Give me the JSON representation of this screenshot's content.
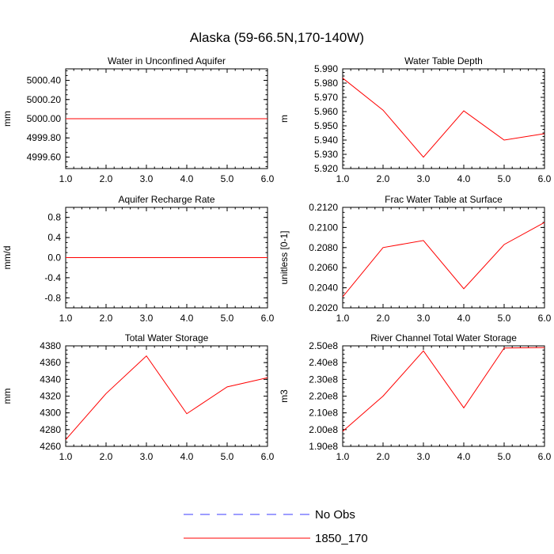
{
  "figure": {
    "title": "Alaska (59-66.5N,170-140W)"
  },
  "legend": {
    "entries": [
      {
        "label": "No Obs",
        "color": "#3b3bff",
        "dash": true
      },
      {
        "label": "1850_170",
        "color": "#ff0000",
        "dash": false
      }
    ]
  },
  "chart_data": [
    {
      "type": "line",
      "title": "Water in Unconfined Aquifer",
      "ylabel": "mm",
      "x": [
        1,
        2,
        3,
        4,
        5,
        6
      ],
      "xlim": [
        1,
        6
      ],
      "xticks": [
        "1.0",
        "2.0",
        "3.0",
        "4.0",
        "5.0",
        "6.0"
      ],
      "ylim": [
        4999.48,
        5000.52
      ],
      "yticks": [
        4999.6,
        4999.8,
        5000.0,
        5000.2,
        5000.4
      ],
      "yticklabels": [
        "4999.60",
        "4999.80",
        "5000.00",
        "5000.20",
        "5000.40"
      ],
      "series": [
        {
          "name": "1850_170",
          "color": "#ff0000",
          "values": [
            5000,
            5000,
            5000,
            5000,
            5000,
            5000
          ]
        }
      ]
    },
    {
      "type": "line",
      "title": "Water Table Depth",
      "ylabel": "m",
      "x": [
        1,
        2,
        3,
        4,
        5,
        6
      ],
      "xlim": [
        1,
        6
      ],
      "xticks": [
        "1.0",
        "2.0",
        "3.0",
        "4.0",
        "5.0",
        "6.0"
      ],
      "ylim": [
        5.92,
        5.99
      ],
      "yticks": [
        5.92,
        5.93,
        5.94,
        5.95,
        5.96,
        5.97,
        5.98,
        5.99
      ],
      "yticklabels": [
        "5.920",
        "5.930",
        "5.940",
        "5.950",
        "5.960",
        "5.970",
        "5.980",
        "5.990"
      ],
      "series": [
        {
          "name": "1850_170",
          "color": "#ff0000",
          "values": [
            5.9835,
            5.961,
            5.928,
            5.9605,
            5.94,
            5.9445
          ]
        }
      ]
    },
    {
      "type": "line",
      "title": "Aquifer Recharge Rate",
      "ylabel": "mm/d",
      "x": [
        1,
        2,
        3,
        4,
        5,
        6
      ],
      "xlim": [
        1,
        6
      ],
      "xticks": [
        "1.0",
        "2.0",
        "3.0",
        "4.0",
        "5.0",
        "6.0"
      ],
      "ylim": [
        -1.0,
        1.0
      ],
      "yticks": [
        -0.8,
        -0.4,
        0.0,
        0.4,
        0.8
      ],
      "yticklabels": [
        "-0.8",
        "-0.4",
        "0.0",
        "0.4",
        "0.8"
      ],
      "series": [
        {
          "name": "1850_170",
          "color": "#ff0000",
          "values": [
            0,
            0,
            0,
            0,
            0,
            0
          ]
        }
      ]
    },
    {
      "type": "line",
      "title": "Frac Water Table at Surface",
      "ylabel": "unitless [0-1]",
      "x": [
        1,
        2,
        3,
        4,
        5,
        6
      ],
      "xlim": [
        1,
        6
      ],
      "xticks": [
        "1.0",
        "2.0",
        "3.0",
        "4.0",
        "5.0",
        "6.0"
      ],
      "ylim": [
        0.202,
        0.212
      ],
      "yticks": [
        0.202,
        0.204,
        0.206,
        0.208,
        0.21,
        0.212
      ],
      "yticklabels": [
        "0.2020",
        "0.2040",
        "0.2060",
        "0.2080",
        "0.2100",
        "0.2120"
      ],
      "series": [
        {
          "name": "1850_170",
          "color": "#ff0000",
          "values": [
            0.2031,
            0.208,
            0.2087,
            0.2039,
            0.2083,
            0.2105
          ]
        }
      ]
    },
    {
      "type": "line",
      "title": "Total Water Storage",
      "ylabel": "mm",
      "x": [
        1,
        2,
        3,
        4,
        5,
        6
      ],
      "xlim": [
        1,
        6
      ],
      "xticks": [
        "1.0",
        "2.0",
        "3.0",
        "4.0",
        "5.0",
        "6.0"
      ],
      "ylim": [
        4260,
        4380
      ],
      "yticks": [
        4260,
        4280,
        4300,
        4320,
        4340,
        4360,
        4380
      ],
      "yticklabels": [
        "4260",
        "4280",
        "4300",
        "4320",
        "4340",
        "4360",
        "4380"
      ],
      "series": [
        {
          "name": "1850_170",
          "color": "#ff0000",
          "values": [
            4268,
            4323,
            4368,
            4299,
            4331,
            4342
          ]
        }
      ]
    },
    {
      "type": "line",
      "title": "River Channel Total Water Storage",
      "ylabel": "m3",
      "x": [
        1,
        2,
        3,
        4,
        5,
        6
      ],
      "xlim": [
        1,
        6
      ],
      "xticks": [
        "1.0",
        "2.0",
        "3.0",
        "4.0",
        "5.0",
        "6.0"
      ],
      "ylim": [
        190000000,
        250000000
      ],
      "yticks": [
        190000000,
        200000000,
        210000000,
        220000000,
        230000000,
        240000000,
        250000000
      ],
      "yticklabels": [
        "1.90e8",
        "2.00e8",
        "2.10e8",
        "2.20e8",
        "2.30e8",
        "2.40e8",
        "2.50e8"
      ],
      "series": [
        {
          "name": "1850_170",
          "color": "#ff0000",
          "values": [
            199000000,
            220000000,
            247000000,
            213000000,
            248700000,
            249000000
          ]
        }
      ]
    }
  ]
}
